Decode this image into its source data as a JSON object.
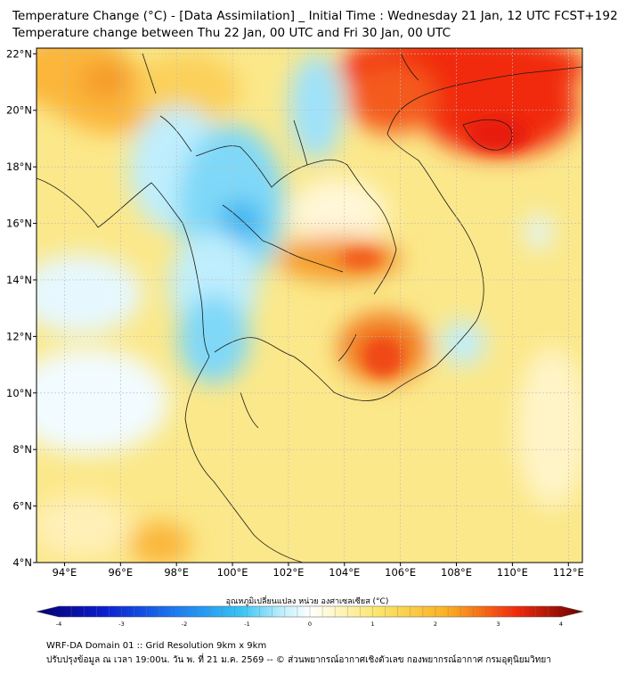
{
  "header": {
    "title_line1": "Temperature Change (°C) - [Data Assimilation] _ Initial Time : Wednesday 21 Jan, 12 UTC FCST+192",
    "title_line2": "Temperature change between Thu 22 Jan, 00 UTC and Fri 30 Jan, 00 UTC"
  },
  "map": {
    "lat_ticks": [
      "22°N",
      "20°N",
      "18°N",
      "16°N",
      "14°N",
      "12°N",
      "10°N",
      "8°N",
      "6°N",
      "4°N"
    ],
    "lon_ticks": [
      "94°E",
      "96°E",
      "98°E",
      "100°E",
      "102°E",
      "104°E",
      "106°E",
      "108°E",
      "110°E",
      "112°E"
    ],
    "lat_range": [
      4,
      22.2
    ],
    "lon_range": [
      93,
      112.5
    ],
    "grid": true
  },
  "colorbar": {
    "label": "อุณหภูมิเปลี่ยนแปลง หน่วย องศาเซลเซียส (°C)",
    "ticks": [
      "-4",
      "-3",
      "-2",
      "-1",
      "0",
      "1",
      "2",
      "3",
      "4"
    ],
    "range": [
      -4,
      4
    ],
    "colors": [
      "#08006e",
      "#0a1ed0",
      "#1a78f0",
      "#38c4f4",
      "#ffffff",
      "#fbe66a",
      "#fbb022",
      "#f32c0c",
      "#6a0000"
    ]
  },
  "footer": {
    "line1": "WRF-DA Domain 01 :: Grid Resolution 9km x 9km",
    "line2": "ปรับปรุงข้อมูล ณ เวลา 19:00น. วัน พ. ที่ 21 ม.ค. 2569 -- © ส่วนพยากรณ์อากาศเชิงตัวเลข กองพยากรณ์อากาศ กรมอุตุนิยมวิทยา"
  }
}
